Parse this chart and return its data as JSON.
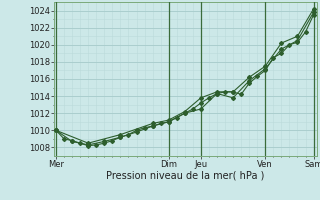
{
  "xlabel": "Pression niveau de la mer( hPa )",
  "bg_color": "#cce8e8",
  "grid_color_major": "#aacfcf",
  "grid_color_minor": "#bbdada",
  "line_color": "#2d5e2d",
  "ylim": [
    1007.0,
    1025.0
  ],
  "yticks": [
    1008,
    1010,
    1012,
    1014,
    1016,
    1018,
    1020,
    1022,
    1024
  ],
  "day_labels": [
    "Mer",
    "Dim",
    "Jeu",
    "Ven",
    "Sam"
  ],
  "day_positions": [
    0,
    3.5,
    4.5,
    6.5,
    8.0
  ],
  "vline_positions": [
    0.0,
    3.5,
    4.5,
    6.5,
    8.0
  ],
  "series1_x": [
    0,
    0.25,
    0.5,
    0.75,
    1.0,
    1.25,
    1.5,
    1.75,
    2.0,
    2.25,
    2.5,
    2.75,
    3.0,
    3.25,
    3.5,
    3.75,
    4.0,
    4.25,
    4.5,
    4.75,
    5.0,
    5.25,
    5.5,
    5.75,
    6.0,
    6.25,
    6.5,
    6.75,
    7.0,
    7.25,
    7.5,
    7.75,
    8.0
  ],
  "series1_y": [
    1010.0,
    1009.0,
    1008.8,
    1008.5,
    1008.2,
    1008.3,
    1008.5,
    1008.8,
    1009.2,
    1009.5,
    1010.0,
    1010.3,
    1010.5,
    1010.8,
    1011.0,
    1011.5,
    1012.0,
    1012.5,
    1013.2,
    1013.8,
    1014.3,
    1014.5,
    1014.5,
    1014.2,
    1015.5,
    1016.3,
    1017.0,
    1018.5,
    1019.0,
    1020.0,
    1020.3,
    1021.5,
    1023.5
  ],
  "series2_x": [
    0,
    0.5,
    1.0,
    1.5,
    2.0,
    2.5,
    3.0,
    3.5,
    4.0,
    4.5,
    5.0,
    5.5,
    6.0,
    6.5,
    7.0,
    7.5,
    8.0
  ],
  "series2_y": [
    1010.0,
    1008.7,
    1008.3,
    1008.7,
    1009.2,
    1009.8,
    1010.5,
    1011.0,
    1012.0,
    1012.5,
    1014.3,
    1013.8,
    1015.8,
    1017.2,
    1019.5,
    1020.5,
    1023.8
  ],
  "series3_x": [
    0,
    1.0,
    2.0,
    3.0,
    3.5,
    4.0,
    4.5,
    5.0,
    5.5,
    6.0,
    6.5,
    7.0,
    7.5,
    8.0
  ],
  "series3_y": [
    1010.0,
    1008.5,
    1009.5,
    1010.8,
    1011.2,
    1012.2,
    1013.8,
    1014.5,
    1014.5,
    1016.2,
    1017.5,
    1020.2,
    1021.0,
    1024.2
  ]
}
